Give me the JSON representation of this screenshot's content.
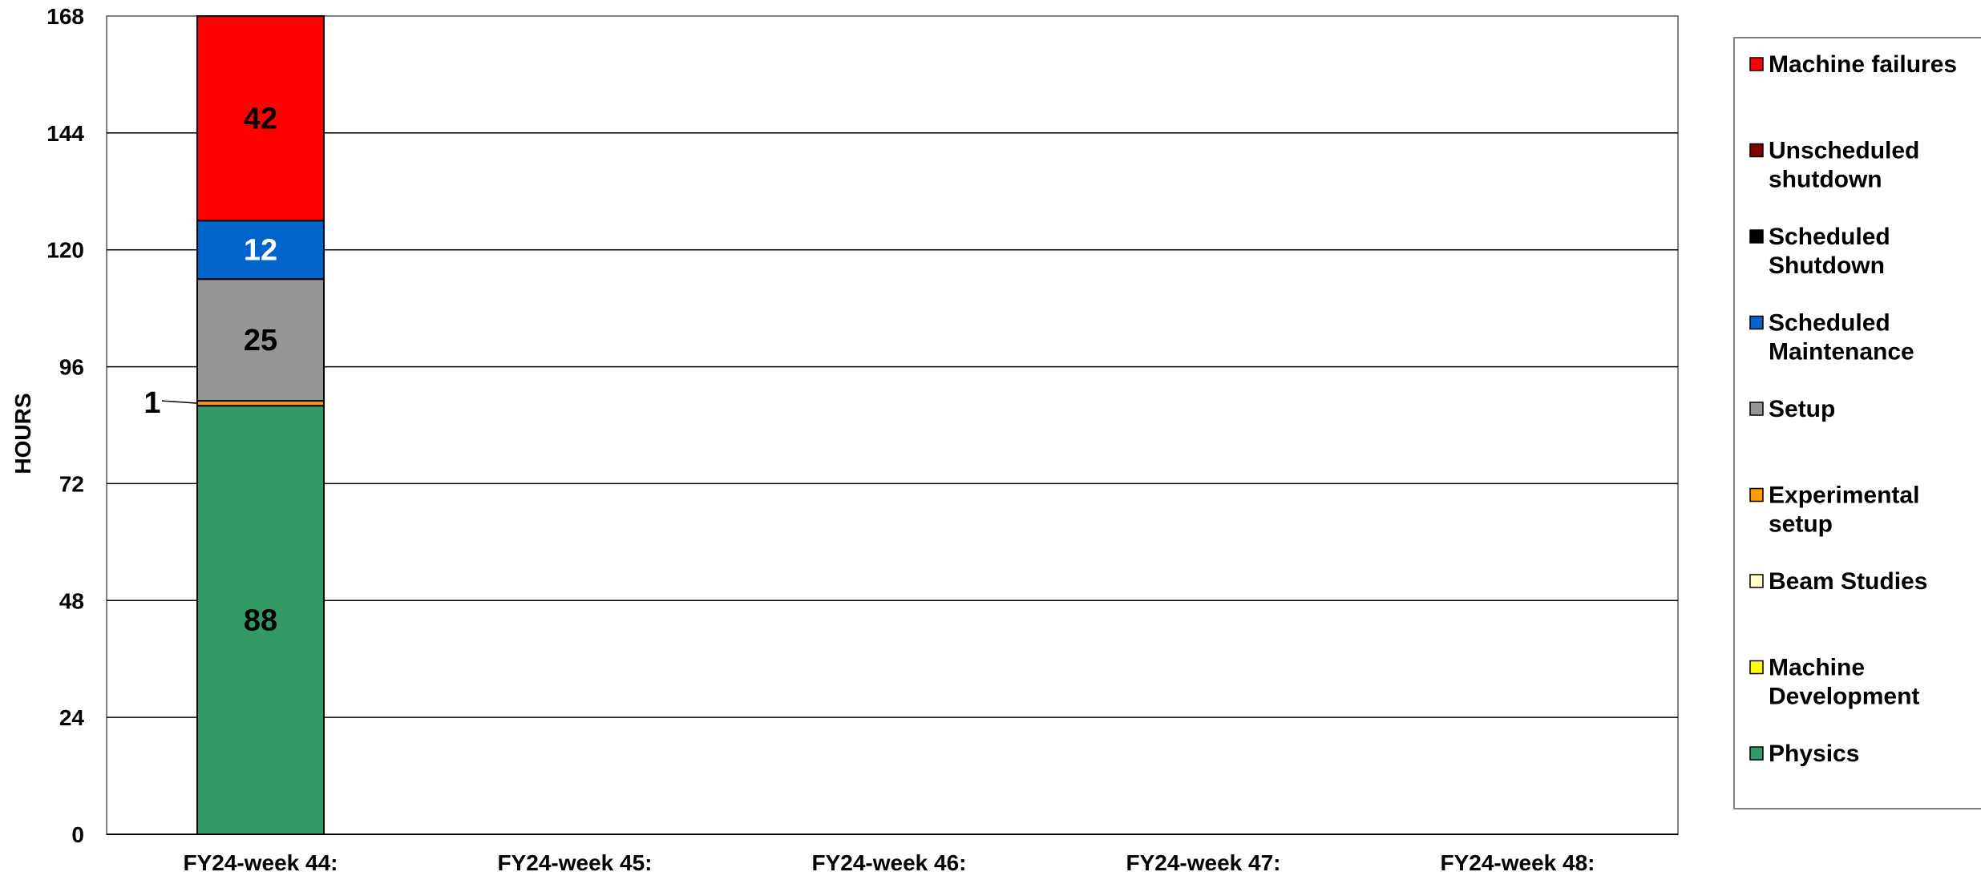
{
  "chart_data": {
    "type": "bar",
    "stacked": true,
    "ylabel": "HOURS",
    "xlabel": "",
    "title": "",
    "ylim": [
      0,
      168
    ],
    "yticks": [
      0,
      24,
      48,
      72,
      96,
      120,
      144,
      168
    ],
    "grid": true,
    "legend_position": "right",
    "categories": [
      "FY24-week 44:",
      "FY24-week 45:",
      "FY24-week 46:",
      "FY24-week 47:",
      "FY24-week 48:"
    ],
    "series": [
      {
        "name": "Physics",
        "color": "#339966",
        "label_color": "#000000",
        "values": [
          88,
          0,
          0,
          0,
          0
        ]
      },
      {
        "name": "Machine Development",
        "color": "#FFFF00",
        "label_color": "#000000",
        "values": [
          0,
          0,
          0,
          0,
          0
        ]
      },
      {
        "name": "Beam Studies",
        "color": "#FFFFCC",
        "label_color": "#000000",
        "values": [
          0,
          0,
          0,
          0,
          0
        ]
      },
      {
        "name": "Experimental setup",
        "color": "#FF9900",
        "label_color": "#000000",
        "values": [
          1,
          0,
          0,
          0,
          0
        ]
      },
      {
        "name": "Setup",
        "color": "#969696",
        "label_color": "#000000",
        "values": [
          25,
          0,
          0,
          0,
          0
        ]
      },
      {
        "name": "Scheduled Maintenance",
        "color": "#0066CC",
        "label_color": "#FFFFFF",
        "values": [
          12,
          0,
          0,
          0,
          0
        ]
      },
      {
        "name": "Scheduled Shutdown",
        "color": "#000000",
        "label_color": "#FFFFFF",
        "values": [
          0,
          0,
          0,
          0,
          0
        ]
      },
      {
        "name": "Unscheduled shutdown",
        "color": "#800000",
        "label_color": "#FFFFFF",
        "values": [
          0,
          0,
          0,
          0,
          0
        ]
      },
      {
        "name": "Machine failures",
        "color": "#FF0000",
        "label_color": "#000000",
        "values": [
          42,
          0,
          0,
          0,
          0
        ]
      }
    ],
    "legend_order": [
      "Machine failures",
      "Unscheduled shutdown",
      "Scheduled Shutdown",
      "Scheduled Maintenance",
      "Setup",
      "Experimental setup",
      "Beam Studies",
      "Machine Development",
      "Physics"
    ]
  }
}
